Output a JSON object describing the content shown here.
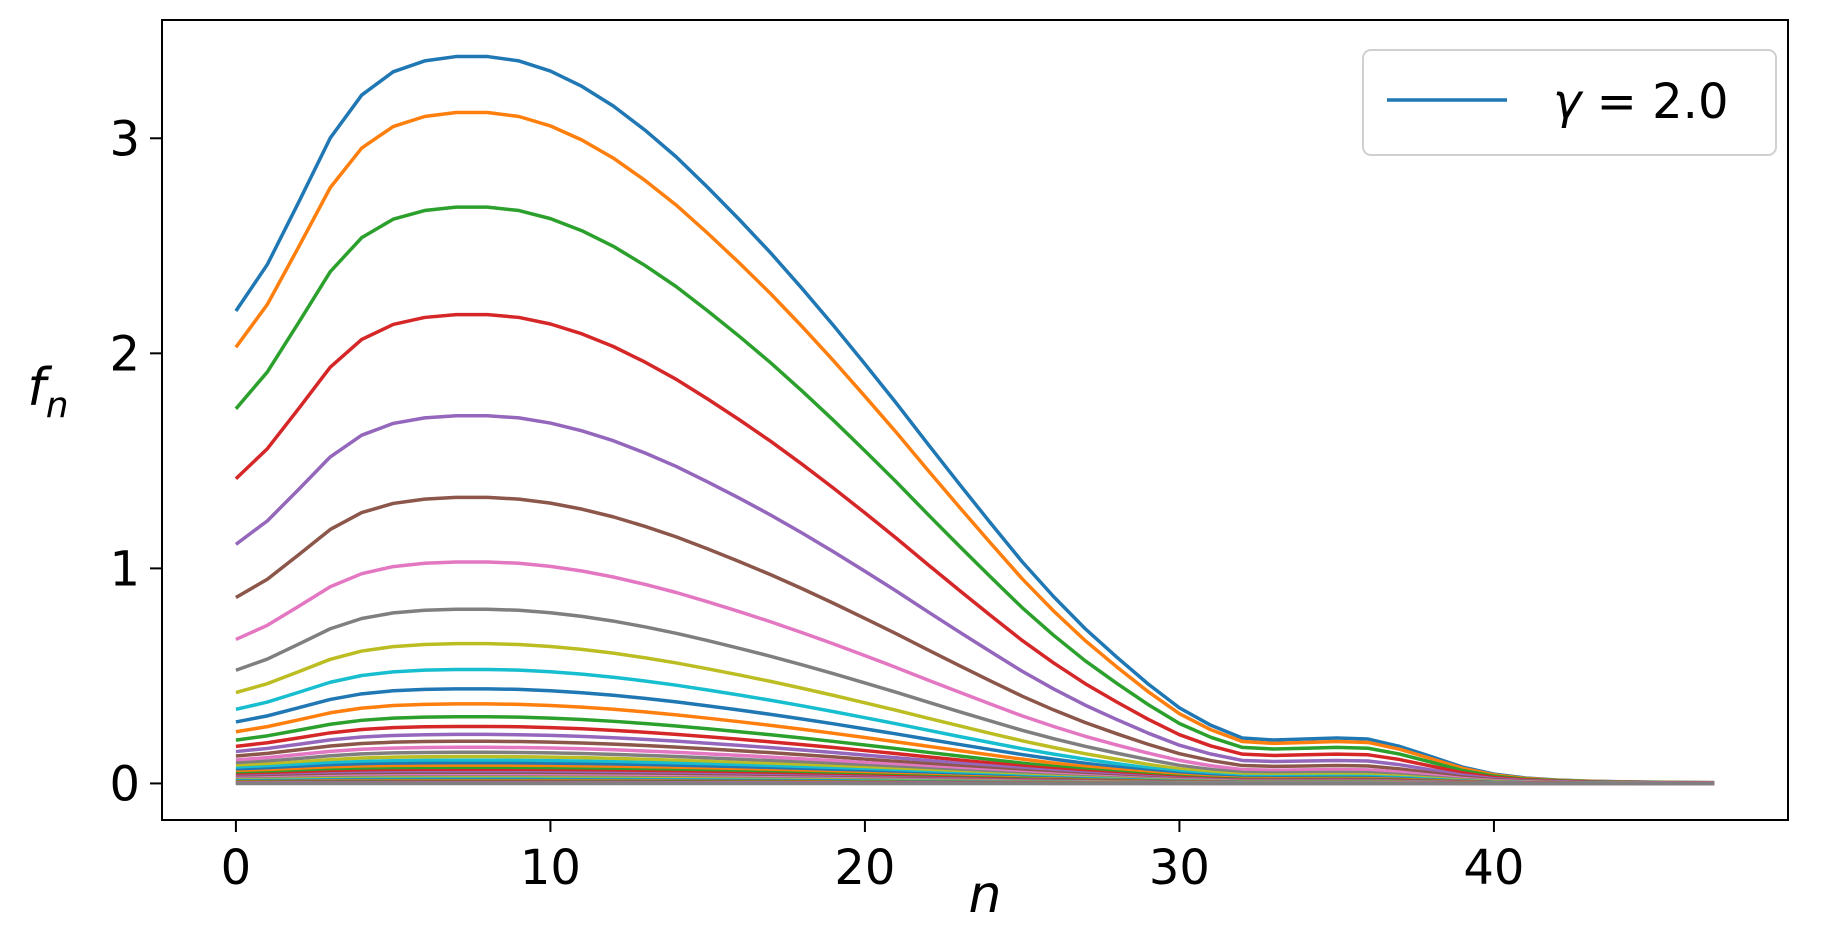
{
  "chart_data": {
    "type": "line",
    "title": "",
    "xlabel": "n",
    "ylabel_main": "f",
    "ylabel_sub": "n",
    "xlim": [
      -2.35,
      49.35
    ],
    "ylim": [
      -0.17,
      3.55
    ],
    "xticks": [
      0,
      10,
      20,
      30,
      40
    ],
    "yticks": [
      0,
      1,
      2,
      3
    ],
    "x_max": 47,
    "legend": {
      "position": "top-right",
      "label_symbol": "γ",
      "label_rest": " = 2.0",
      "color": "#1f77b4"
    },
    "grid": false,
    "palette": [
      "#1f77b4",
      "#ff7f0e",
      "#2ca02c",
      "#d62728",
      "#9467bd",
      "#8c564b",
      "#e377c2",
      "#7f7f7f",
      "#bcbd22",
      "#17becf"
    ],
    "series": [
      {
        "peak": 3.38
      },
      {
        "peak": 3.12
      },
      {
        "peak": 2.68
      },
      {
        "peak": 2.18
      },
      {
        "peak": 1.71
      },
      {
        "peak": 1.33
      },
      {
        "peak": 1.03
      },
      {
        "peak": 0.81
      },
      {
        "peak": 0.65
      },
      {
        "peak": 0.53
      },
      {
        "peak": 0.44
      },
      {
        "peak": 0.37
      },
      {
        "peak": 0.31
      },
      {
        "peak": 0.265
      },
      {
        "peak": 0.228
      },
      {
        "peak": 0.196
      },
      {
        "peak": 0.168
      },
      {
        "peak": 0.145
      },
      {
        "peak": 0.125
      },
      {
        "peak": 0.108
      },
      {
        "peak": 0.093
      },
      {
        "peak": 0.08
      },
      {
        "peak": 0.069
      },
      {
        "peak": 0.059
      },
      {
        "peak": 0.05
      },
      {
        "peak": 0.043
      },
      {
        "peak": 0.036
      },
      {
        "peak": 0.03
      },
      {
        "peak": 0.025
      },
      {
        "peak": 0.02
      },
      {
        "peak": 0.016
      },
      {
        "peak": 0.012
      },
      {
        "peak": 0.009
      },
      {
        "peak": 0.006
      },
      {
        "peak": 0.004
      },
      {
        "peak": 0.002
      },
      {
        "peak": 0.001
      },
      {
        "peak": 0.0
      }
    ],
    "shape": [
      0.65,
      0.714,
      0.8,
      0.888,
      0.947,
      0.979,
      0.994,
      1.0,
      1.0,
      0.994,
      0.98,
      0.959,
      0.932,
      0.899,
      0.862,
      0.82,
      0.776,
      0.73,
      0.681,
      0.63,
      0.577,
      0.523,
      0.467,
      0.412,
      0.358,
      0.305,
      0.257,
      0.213,
      0.174,
      0.137,
      0.104,
      0.08,
      0.0625,
      0.0597,
      0.0611,
      0.0625,
      0.0611,
      0.051,
      0.037,
      0.0225,
      0.0128,
      0.0075,
      0.0048,
      0.0032,
      0.0024,
      0.0018,
      0.0014,
      0.0012
    ]
  }
}
